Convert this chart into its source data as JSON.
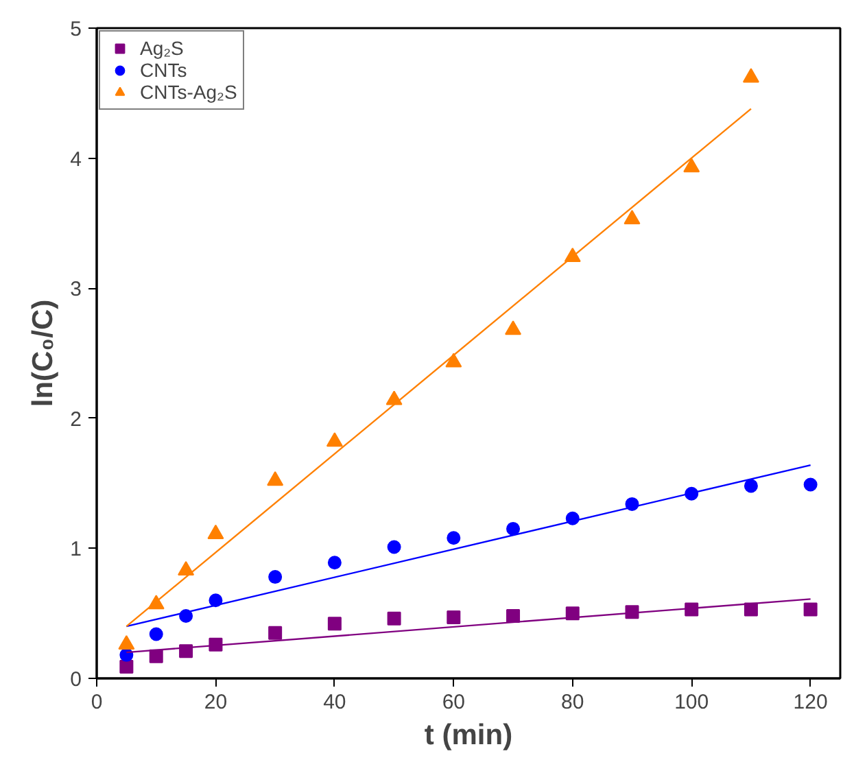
{
  "chart_data": {
    "type": "scatter",
    "xlabel": "t (min)",
    "ylabel": "ln(C₀/C)",
    "xlim": [
      0,
      125
    ],
    "ylim": [
      0,
      5
    ],
    "xticks": [
      0,
      20,
      40,
      60,
      80,
      100,
      120
    ],
    "yticks": [
      0,
      1,
      2,
      3,
      4,
      5
    ],
    "grid": false,
    "legend": "top left",
    "series": [
      {
        "name": "Ag₂S",
        "color": "#800080",
        "marker": "square",
        "x": [
          5,
          10,
          15,
          20,
          30,
          40,
          50,
          60,
          70,
          80,
          90,
          100,
          110,
          120
        ],
        "values": [
          0.09,
          0.17,
          0.21,
          0.26,
          0.35,
          0.42,
          0.46,
          0.47,
          0.48,
          0.5,
          0.51,
          0.53,
          0.53,
          0.53
        ]
      },
      {
        "name": "CNTs",
        "color": "#0000ff",
        "marker": "circle",
        "x": [
          5,
          10,
          15,
          20,
          30,
          40,
          50,
          60,
          70,
          80,
          90,
          100,
          110,
          120
        ],
        "values": [
          0.18,
          0.34,
          0.48,
          0.6,
          0.78,
          0.89,
          1.01,
          1.08,
          1.15,
          1.23,
          1.34,
          1.42,
          1.48,
          1.49
        ]
      },
      {
        "name": "CNTs-Ag₂S",
        "color": "#ff8000",
        "marker": "triangle",
        "x": [
          5,
          10,
          15,
          20,
          30,
          40,
          50,
          60,
          70,
          80,
          90,
          100,
          110
        ],
        "values": [
          0.26,
          0.57,
          0.83,
          1.11,
          1.52,
          1.82,
          2.14,
          2.43,
          2.68,
          3.24,
          3.53,
          3.93,
          4.62
        ]
      },
      {
        "type": "line",
        "color": "#800080",
        "marker": "none",
        "x": [
          5,
          120
        ],
        "values": [
          0.2,
          0.61
        ]
      },
      {
        "type": "line",
        "color": "#0000ff",
        "marker": "none",
        "x": [
          5,
          120
        ],
        "values": [
          0.4,
          1.64
        ]
      },
      {
        "type": "line",
        "color": "#ff8000",
        "marker": "none",
        "x": [
          5,
          110
        ],
        "values": [
          0.4,
          4.38
        ]
      }
    ]
  }
}
